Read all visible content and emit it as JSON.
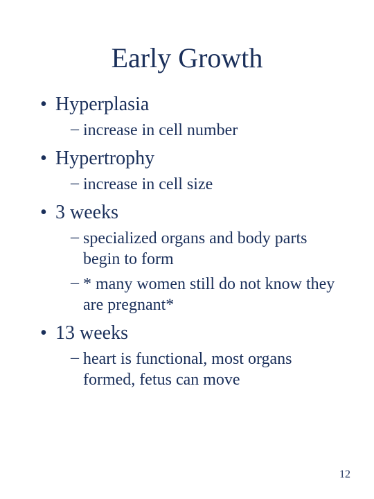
{
  "colors": {
    "text": "#1a2f5a",
    "background": "#ffffff"
  },
  "title": "Early Growth",
  "items": [
    {
      "label": "Hyperplasia",
      "subs": [
        "increase in cell number"
      ]
    },
    {
      "label": "Hypertrophy",
      "subs": [
        "increase in cell size"
      ]
    },
    {
      "label": "3 weeks",
      "subs": [
        "specialized organs and body parts begin to form",
        "* many women still do not know they are pregnant*"
      ]
    },
    {
      "label": "13 weeks",
      "subs": [
        "heart is functional, most organs formed, fetus can move"
      ]
    }
  ],
  "page_number": "12"
}
